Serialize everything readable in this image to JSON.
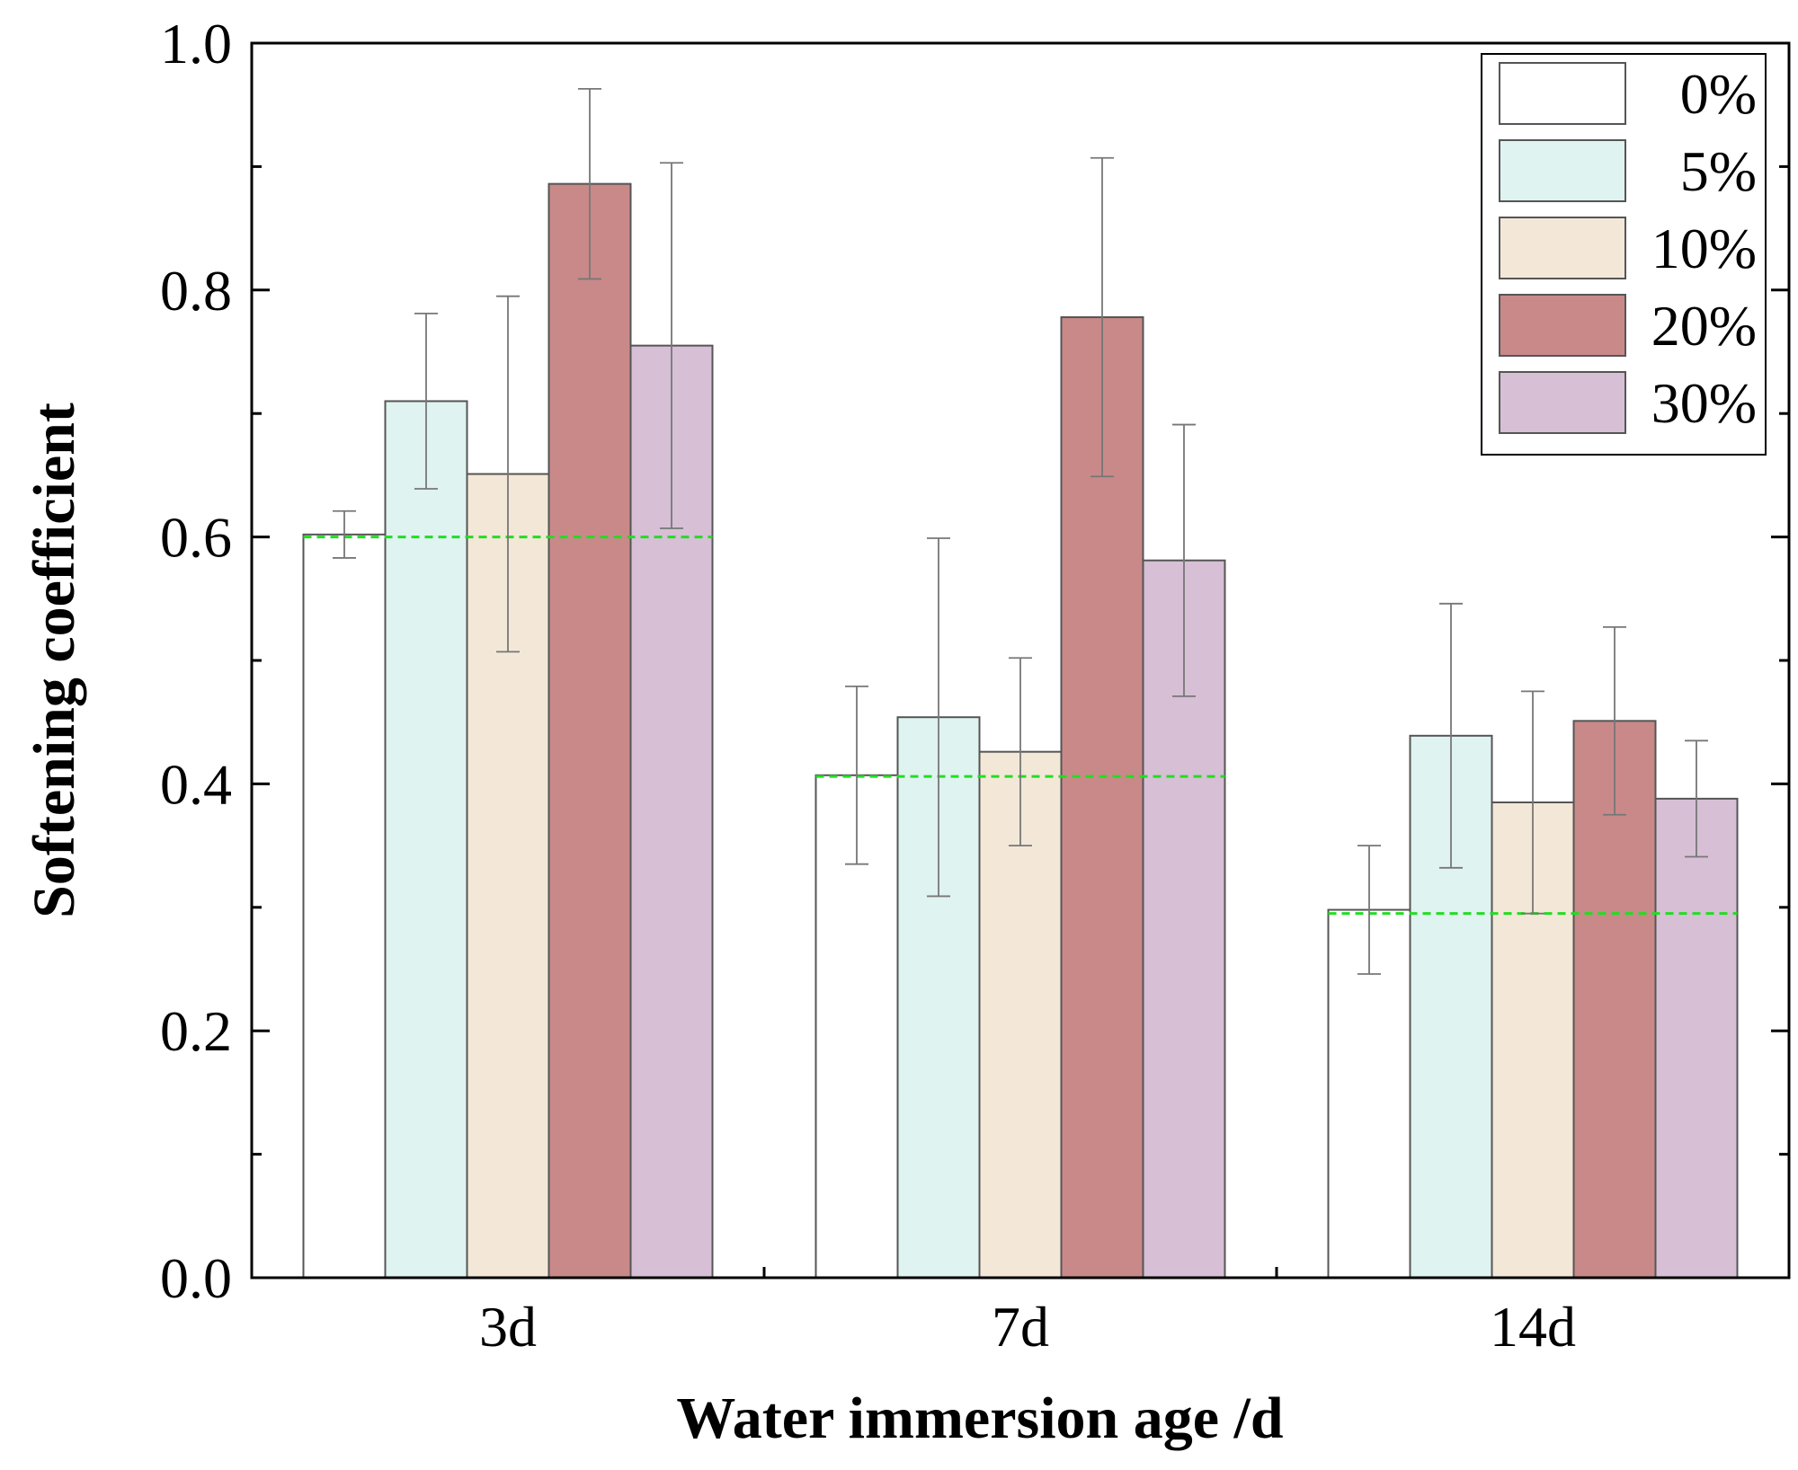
{
  "chart_data": {
    "type": "bar",
    "title": "",
    "xlabel": "Water immersion age /d",
    "ylabel": "Softening coefficient",
    "ylim": [
      0,
      1.0
    ],
    "yticks": [
      0.0,
      0.2,
      0.4,
      0.6,
      0.8,
      1.0
    ],
    "ytick_labels": [
      "0.0",
      "0.2",
      "0.4",
      "0.6",
      "0.8",
      "1.0"
    ],
    "categories": [
      "3d",
      "7d",
      "14d"
    ],
    "legend_position": "top-right",
    "series": [
      {
        "name": "0%",
        "color": "#ffffff",
        "values": [
          0.602,
          0.407,
          0.298
        ],
        "errors": [
          0.019,
          0.072,
          0.052
        ]
      },
      {
        "name": "5%",
        "color": "#dff3f1",
        "values": [
          0.71,
          0.454,
          0.439
        ],
        "errors": [
          0.071,
          0.145,
          0.107
        ]
      },
      {
        "name": "10%",
        "color": "#f3e8d7",
        "values": [
          0.651,
          0.426,
          0.385
        ],
        "errors": [
          0.144,
          0.076,
          0.09
        ]
      },
      {
        "name": "20%",
        "color": "#c98989",
        "values": [
          0.886,
          0.778,
          0.451
        ],
        "errors": [
          0.077,
          0.129,
          0.076
        ]
      },
      {
        "name": "30%",
        "color": "#d7bfd6",
        "values": [
          0.755,
          0.581,
          0.388
        ],
        "errors": [
          0.148,
          0.11,
          0.047
        ]
      }
    ],
    "reference_lines": [
      {
        "category": "3d",
        "value": 0.6,
        "color": "#22dd22"
      },
      {
        "category": "7d",
        "value": 0.406,
        "color": "#22dd22"
      },
      {
        "category": "14d",
        "value": 0.295,
        "color": "#22dd22"
      }
    ]
  }
}
